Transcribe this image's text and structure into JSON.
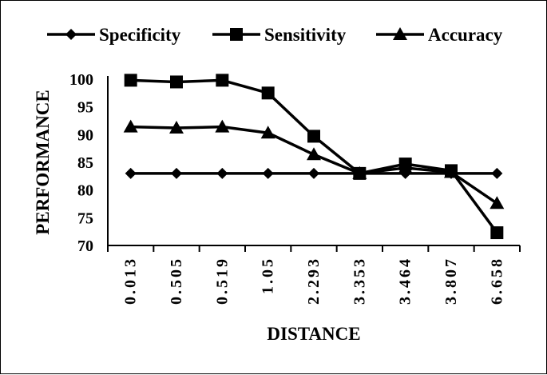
{
  "chart_data": {
    "type": "line",
    "title": "",
    "xlabel": "DISTANCE",
    "ylabel": "PERFORMANCE",
    "categories": [
      "0.013",
      "0.505",
      "0.519",
      "1.05",
      "2.293",
      "3.353",
      "3.464",
      "3.807",
      "6.658"
    ],
    "ylim": [
      70,
      100
    ],
    "yticks": [
      "70",
      "75",
      "80",
      "85",
      "90",
      "95",
      "100"
    ],
    "grid": false,
    "legend_position": "top",
    "series": [
      {
        "name": "Specificity",
        "marker": "diamond",
        "color": "#000000",
        "values": [
          83,
          83,
          83,
          83,
          83,
          83,
          83,
          83,
          83
        ]
      },
      {
        "name": "Sensitivity",
        "marker": "square",
        "color": "#000000",
        "values": [
          99.8,
          99.5,
          99.8,
          97.5,
          89.7,
          83,
          84.7,
          83.5,
          72.3
        ]
      },
      {
        "name": "Accuracy",
        "marker": "triangle",
        "color": "#000000",
        "values": [
          91.4,
          91.2,
          91.4,
          90.3,
          86.4,
          83,
          84,
          83.2,
          77.6
        ]
      }
    ]
  }
}
